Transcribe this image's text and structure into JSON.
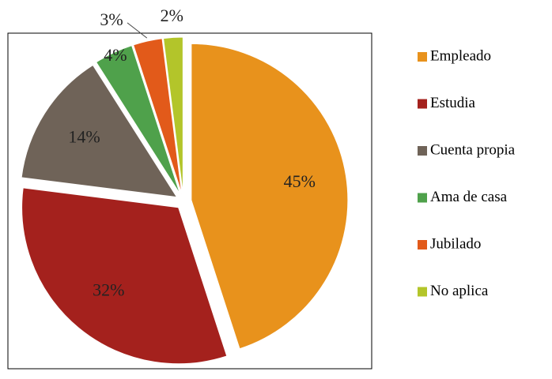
{
  "chart_data": {
    "type": "pie",
    "categories": [
      "Empleado",
      "Estudia",
      "Cuenta propia",
      "Ama de casa",
      "Jubilado",
      "No aplica"
    ],
    "values": [
      45,
      32,
      14,
      4,
      3,
      2
    ],
    "value_labels": [
      "45%",
      "32%",
      "14%",
      "4%",
      "3%",
      "2%"
    ],
    "colors": [
      "#E8921C",
      "#A4211D",
      "#6F6358",
      "#4FA14B",
      "#E25A1A",
      "#B3C52A"
    ],
    "legend": "right"
  }
}
